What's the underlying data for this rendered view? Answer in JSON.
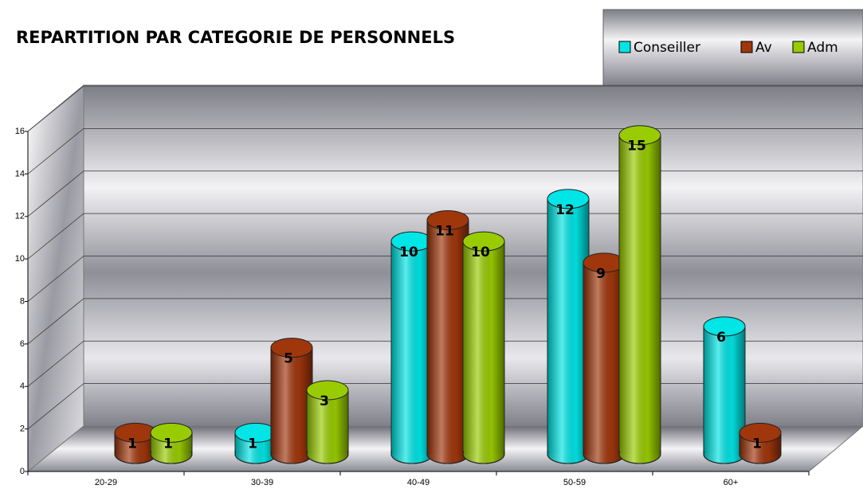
{
  "chart_data": {
    "type": "bar3d",
    "title": "REPARTITION PAR CATEGORIE DE PERSONNELS",
    "categories": [
      "20-29",
      "30-39",
      "40-49",
      "50-59",
      "60+"
    ],
    "series": [
      {
        "name": "Conseiller",
        "color": "#00e5e5",
        "values": [
          null,
          1,
          10,
          12,
          6
        ]
      },
      {
        "name": "Av",
        "color": "#a0360c",
        "values": [
          1,
          5,
          11,
          9,
          1
        ]
      },
      {
        "name": "Adm",
        "color": "#99cc00",
        "values": [
          1,
          3,
          10,
          15,
          null
        ]
      }
    ],
    "ylim": [
      0,
      16
    ],
    "yticks": [
      0,
      2,
      4,
      6,
      8,
      10,
      12,
      14,
      16
    ],
    "grid": true,
    "legend": "top-right"
  }
}
